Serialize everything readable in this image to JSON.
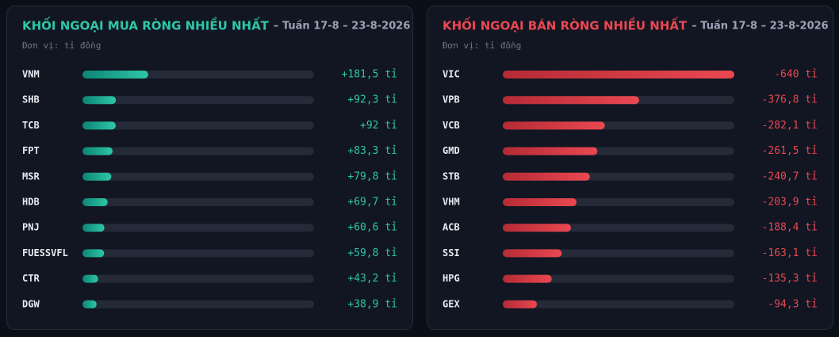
{
  "chart_data": [
    {
      "type": "bar",
      "title": "KHỐI NGOẠI MUA RÒNG NHIỀU NHẤT",
      "subtitle": "– Tuần 17-8 – 23-8-2026",
      "unit_note": "Đơn vị: tỉ đồng",
      "categories": [
        "VNM",
        "SHB",
        "TCB",
        "FPT",
        "MSR",
        "HDB",
        "PNJ",
        "FUESSVFL",
        "CTR",
        "DGW"
      ],
      "values": [
        181.5,
        92.3,
        92,
        83.3,
        79.8,
        69.7,
        60.6,
        59.8,
        43.2,
        38.9
      ],
      "value_labels": [
        "+181,5 tỉ",
        "+92,3 tỉ",
        "+92 tỉ",
        "+83,3 tỉ",
        "+79,8 tỉ",
        "+69,7 tỉ",
        "+60,6 tỉ",
        "+59,8 tỉ",
        "+43,2 tỉ",
        "+38,9 tỉ"
      ],
      "xlim": [
        0,
        640
      ],
      "color": [
        "#0d8475",
        "#2ec7a8"
      ]
    },
    {
      "type": "bar",
      "title": "KHỐI NGOẠI BÁN RÒNG NHIỀU NHẤT",
      "subtitle": "– Tuần 17-8 – 23-8-2026",
      "unit_note": "Đơn vị: tỉ đồng",
      "categories": [
        "VIC",
        "VPB",
        "VCB",
        "GMD",
        "STB",
        "VHM",
        "ACB",
        "SSI",
        "HPG",
        "GEX"
      ],
      "values": [
        -640,
        -376.8,
        -282.1,
        -261.5,
        -240.7,
        -203.9,
        -188.4,
        -163.1,
        -135.3,
        -94.3
      ],
      "value_labels": [
        "-640 tỉ",
        "-376,8 tỉ",
        "-282,1 tỉ",
        "-261,5 tỉ",
        "-240,7 tỉ",
        "-203,9 tỉ",
        "-188,4 tỉ",
        "-163,1 tỉ",
        "-135,3 tỉ",
        "-94,3 tỉ"
      ],
      "xlim": [
        0,
        -640
      ],
      "color": [
        "#b52b35",
        "#ea4851"
      ]
    }
  ]
}
